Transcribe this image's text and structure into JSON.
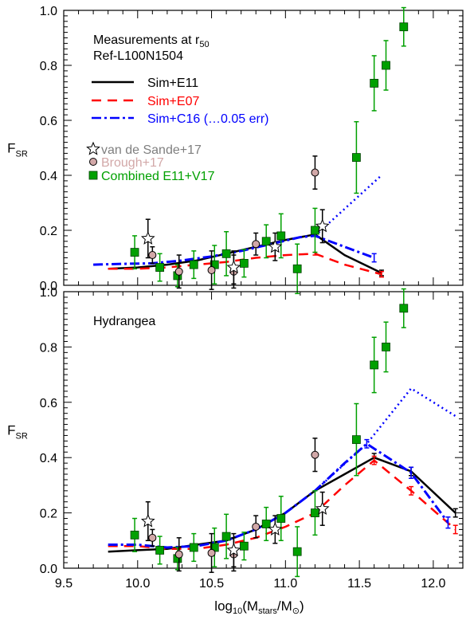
{
  "colors": {
    "sim_e11": "#000000",
    "sim_e07": "#ff0000",
    "sim_c16": "#0000ff",
    "vds17": "#7f7f7f",
    "brough17": "#d2a8a8",
    "combined": "#00a000"
  },
  "chart_data": {
    "type": "scatter",
    "xlabel": "log10(Mstars/M⊙)",
    "xlabel_base": "log",
    "xlabel_sub": "10",
    "xlabel_mid": "(M",
    "xlabel_sub2": "stars",
    "xlabel_mid2": "/M",
    "xlabel_sub3": "⊙",
    "xlabel_end": ")",
    "ylabel": "FSR",
    "ylabel_base": "F",
    "ylabel_sub": "SR",
    "xlim": [
      9.5,
      12.2
    ],
    "xticks": [
      "9.5",
      "10.0",
      "10.5",
      "11.0",
      "11.5",
      "12.0"
    ],
    "legend_position": "top-left",
    "legend": [
      {
        "label": "Sim+E11",
        "color": "#000000",
        "style": "solid"
      },
      {
        "label": "Sim+E07",
        "color": "#ff0000",
        "style": "dashed"
      },
      {
        "label": "Sim+C16 (…0.05 err)",
        "color": "#0000ff",
        "style": "dashdot"
      },
      {
        "label": "van de Sande+17",
        "color": "#7f7f7f",
        "marker": "star"
      },
      {
        "label": "Brough+17",
        "color": "#d2a8a8",
        "marker": "circle"
      },
      {
        "label": "Combined E11+V17",
        "color": "#00a000",
        "marker": "square"
      }
    ],
    "panels": [
      {
        "name": "top",
        "annotation_line1": "Measurements at r",
        "annotation_sub": "50",
        "annotation_line2": "Ref-L100N1504",
        "ylim": [
          0,
          1.0
        ],
        "yticks": [
          "0.0",
          "0.2",
          "0.4",
          "0.6",
          "0.8",
          "1.0"
        ],
        "series": [
          {
            "name": "Sim+E11",
            "x": [
              9.8,
              10.0,
              10.2,
              10.4,
              10.6,
              10.8,
              11.0,
              11.2,
              11.4,
              11.65
            ],
            "y": [
              0.06,
              0.065,
              0.075,
              0.09,
              0.115,
              0.14,
              0.165,
              0.185,
              0.11,
              0.045
            ],
            "err": [
              0,
              0,
              0,
              0,
              0,
              0,
              0,
              0,
              0,
              0.01
            ]
          },
          {
            "name": "Sim+E07",
            "x": [
              9.8,
              10.0,
              10.2,
              10.4,
              10.6,
              10.8,
              11.0,
              11.2,
              11.4,
              11.65
            ],
            "y": [
              0.06,
              0.06,
              0.065,
              0.075,
              0.085,
              0.1,
              0.11,
              0.115,
              0.075,
              0.04
            ],
            "err": [
              0,
              0,
              0,
              0,
              0,
              0,
              0,
              0.005,
              0,
              0.01
            ]
          },
          {
            "name": "Sim+C16",
            "x": [
              9.7,
              9.9,
              10.1,
              10.3,
              10.5,
              10.7,
              10.9,
              11.1,
              11.2,
              11.4,
              11.6
            ],
            "y": [
              0.075,
              0.078,
              0.08,
              0.09,
              0.105,
              0.125,
              0.15,
              0.175,
              0.18,
              0.14,
              0.1
            ],
            "err": [
              0,
              0,
              0,
              0,
              0,
              0,
              0,
              0,
              0,
              0,
              0.015
            ]
          },
          {
            "name": "C16 0.05 err",
            "x": [
              11.2,
              11.65
            ],
            "y": [
              0.18,
              0.4
            ]
          }
        ],
        "vds17": [
          {
            "x": 10.07,
            "y": 0.17,
            "err": 0.07
          },
          {
            "x": 10.65,
            "y": 0.065,
            "err": 0.06
          },
          {
            "x": 10.93,
            "y": 0.14,
            "err": 0.05
          },
          {
            "x": 11.25,
            "y": 0.215,
            "err": 0.06
          }
        ],
        "brough17": [
          {
            "x": 10.1,
            "y": 0.11,
            "err": 0.03
          },
          {
            "x": 10.28,
            "y": 0.05,
            "err": 0.06
          },
          {
            "x": 10.5,
            "y": 0.055,
            "err": 0.07
          },
          {
            "x": 10.65,
            "y": 0.05,
            "err": 0.06
          },
          {
            "x": 10.8,
            "y": 0.15,
            "err": 0.04
          },
          {
            "x": 11.2,
            "y": 0.41,
            "err": 0.06
          }
        ],
        "combined": [
          {
            "x": 9.98,
            "y": 0.12,
            "err": 0.06
          },
          {
            "x": 10.15,
            "y": 0.065,
            "err": 0.05
          },
          {
            "x": 10.27,
            "y": 0.035,
            "err": 0.04
          },
          {
            "x": 10.38,
            "y": 0.075,
            "err": 0.05
          },
          {
            "x": 10.52,
            "y": 0.075,
            "err": 0.07
          },
          {
            "x": 10.6,
            "y": 0.115,
            "err": 0.08
          },
          {
            "x": 10.72,
            "y": 0.08,
            "err": 0.05
          },
          {
            "x": 10.87,
            "y": 0.16,
            "err": 0.06
          },
          {
            "x": 10.97,
            "y": 0.18,
            "err": 0.08
          },
          {
            "x": 11.08,
            "y": 0.06,
            "err": 0.09
          },
          {
            "x": 11.2,
            "y": 0.2,
            "err": 0.08
          },
          {
            "x": 11.48,
            "y": 0.465,
            "err": 0.13
          },
          {
            "x": 11.6,
            "y": 0.735,
            "err": 0.1
          },
          {
            "x": 11.68,
            "y": 0.8,
            "err": 0.09
          },
          {
            "x": 11.8,
            "y": 0.94,
            "err": 0.07
          }
        ]
      },
      {
        "name": "bottom",
        "annotation_line1": "Hydrangea",
        "ylim": [
          0,
          1.0
        ],
        "yticks": [
          "0.0",
          "0.2",
          "0.4",
          "0.6",
          "0.8",
          "1.0"
        ],
        "series": [
          {
            "name": "Sim+E11",
            "x": [
              9.8,
              10.0,
              10.2,
              10.4,
              10.6,
              10.8,
              11.0,
              11.2,
              11.4,
              11.6,
              11.85,
              12.15
            ],
            "y": [
              0.06,
              0.065,
              0.07,
              0.085,
              0.1,
              0.14,
              0.2,
              0.28,
              0.34,
              0.4,
              0.35,
              0.2
            ],
            "err": [
              0,
              0,
              0,
              0,
              0,
              0,
              0,
              0,
              0,
              0.015,
              0.015,
              0.015
            ]
          },
          {
            "name": "Sim+E07",
            "x": [
              9.8,
              10.0,
              10.2,
              10.4,
              10.6,
              10.8,
              11.0,
              11.2,
              11.4,
              11.6,
              11.85,
              12.15
            ],
            "y": [
              0.08,
              0.08,
              0.07,
              0.07,
              0.085,
              0.11,
              0.15,
              0.2,
              0.3,
              0.39,
              0.28,
              0.14
            ],
            "err": [
              0,
              0,
              0,
              0,
              0,
              0,
              0,
              0,
              0,
              0.015,
              0.015,
              0.015
            ]
          },
          {
            "name": "Sim+C16",
            "x": [
              9.8,
              10.0,
              10.2,
              10.4,
              10.6,
              10.8,
              11.0,
              11.2,
              11.4,
              11.55,
              11.85,
              12.1
            ],
            "y": [
              0.085,
              0.085,
              0.075,
              0.08,
              0.1,
              0.14,
              0.2,
              0.28,
              0.38,
              0.45,
              0.345,
              0.165
            ],
            "err": [
              0,
              0,
              0,
              0,
              0,
              0,
              0,
              0,
              0,
              0.015,
              0.02,
              0.02
            ]
          },
          {
            "name": "C16 0.05 err",
            "x": [
              11.2,
              11.55,
              11.85,
              12.15
            ],
            "y": [
              0.28,
              0.45,
              0.65,
              0.55
            ]
          }
        ],
        "vds17": [
          {
            "x": 10.07,
            "y": 0.17,
            "err": 0.07
          },
          {
            "x": 10.65,
            "y": 0.065,
            "err": 0.06
          },
          {
            "x": 10.93,
            "y": 0.14,
            "err": 0.05
          },
          {
            "x": 11.25,
            "y": 0.215,
            "err": 0.06
          }
        ],
        "brough17": [
          {
            "x": 10.1,
            "y": 0.11,
            "err": 0.03
          },
          {
            "x": 10.28,
            "y": 0.05,
            "err": 0.06
          },
          {
            "x": 10.5,
            "y": 0.055,
            "err": 0.07
          },
          {
            "x": 10.65,
            "y": 0.05,
            "err": 0.06
          },
          {
            "x": 10.8,
            "y": 0.15,
            "err": 0.04
          },
          {
            "x": 11.2,
            "y": 0.41,
            "err": 0.06
          }
        ],
        "combined": [
          {
            "x": 9.98,
            "y": 0.12,
            "err": 0.06
          },
          {
            "x": 10.15,
            "y": 0.065,
            "err": 0.05
          },
          {
            "x": 10.27,
            "y": 0.035,
            "err": 0.04
          },
          {
            "x": 10.38,
            "y": 0.075,
            "err": 0.05
          },
          {
            "x": 10.52,
            "y": 0.075,
            "err": 0.07
          },
          {
            "x": 10.6,
            "y": 0.115,
            "err": 0.08
          },
          {
            "x": 10.72,
            "y": 0.08,
            "err": 0.05
          },
          {
            "x": 10.87,
            "y": 0.16,
            "err": 0.06
          },
          {
            "x": 10.97,
            "y": 0.18,
            "err": 0.08
          },
          {
            "x": 11.08,
            "y": 0.06,
            "err": 0.09
          },
          {
            "x": 11.2,
            "y": 0.2,
            "err": 0.08
          },
          {
            "x": 11.48,
            "y": 0.465,
            "err": 0.13
          },
          {
            "x": 11.6,
            "y": 0.735,
            "err": 0.1
          },
          {
            "x": 11.68,
            "y": 0.8,
            "err": 0.09
          },
          {
            "x": 11.8,
            "y": 0.94,
            "err": 0.07
          }
        ]
      }
    ]
  }
}
